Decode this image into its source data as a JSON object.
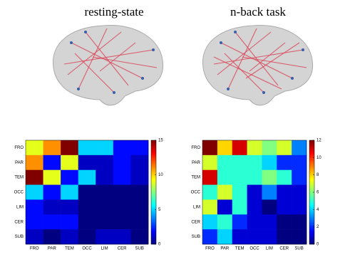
{
  "chart_data": [
    {
      "type": "heatmap",
      "title": "resting-state",
      "colormap": "jet",
      "categories": [
        "FRO",
        "PAR",
        "TEM",
        "OCC",
        "LIM",
        "CER",
        "SUB"
      ],
      "values": [
        [
          9,
          11,
          15,
          5,
          5,
          2,
          2
        ],
        [
          11,
          2,
          9,
          1,
          1,
          2,
          1
        ],
        [
          15,
          9,
          2,
          5,
          1,
          2,
          1
        ],
        [
          5,
          2,
          5,
          0,
          0,
          0,
          0
        ],
        [
          2,
          1,
          1,
          0,
          0,
          0,
          0
        ],
        [
          2,
          2,
          2,
          0,
          0,
          0,
          0
        ],
        [
          1,
          0,
          1,
          0,
          1,
          1,
          0
        ]
      ],
      "zlim": [
        0,
        15
      ],
      "zticks": [
        0,
        5,
        10,
        15
      ]
    },
    {
      "type": "heatmap",
      "title": "n-back task",
      "colormap": "jet",
      "categories": [
        "FRO",
        "PAR",
        "TEM",
        "OCC",
        "LIM",
        "CER",
        "SUB"
      ],
      "values": [
        [
          12,
          8,
          11,
          7,
          6,
          7,
          3
        ],
        [
          7,
          5,
          5,
          5,
          4,
          2,
          2
        ],
        [
          11,
          5,
          5,
          5,
          6,
          5,
          2
        ],
        [
          5,
          7,
          5,
          1,
          3,
          1,
          1
        ],
        [
          7,
          1,
          5,
          1,
          0,
          1,
          1
        ],
        [
          4,
          5,
          2,
          1,
          1,
          0,
          0
        ],
        [
          2,
          4,
          1,
          1,
          1,
          0,
          0
        ]
      ],
      "zlim": [
        0,
        12
      ],
      "zticks": [
        0,
        2,
        4,
        6,
        8,
        10,
        12
      ]
    }
  ]
}
